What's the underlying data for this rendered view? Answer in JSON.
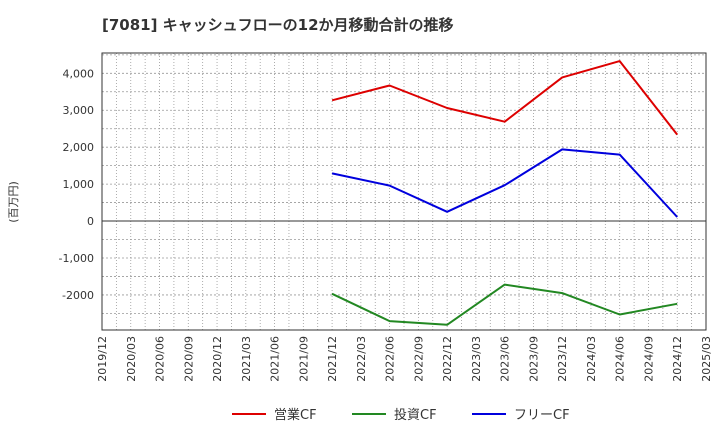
{
  "chart_data": {
    "type": "line",
    "title": "[7081]  キャッシュフローの12か月移動合計の推移",
    "ylabel": "(百万円)",
    "xlabel": "",
    "ylim": [
      -2950,
      4550
    ],
    "yticks": [
      4000,
      3000,
      2000,
      1000,
      0,
      -1000,
      -2000
    ],
    "ytick_labels": [
      "4,000",
      "3,000",
      "2,000",
      "1,000",
      "0",
      "-1,000",
      "-2000"
    ],
    "xticks": [
      "2019/12",
      "2020/03",
      "2020/06",
      "2020/09",
      "2020/12",
      "2021/03",
      "2021/06",
      "2021/09",
      "2021/12",
      "2022/03",
      "2022/06",
      "2022/09",
      "2022/12",
      "2023/03",
      "2023/06",
      "2023/09",
      "2023/12",
      "2024/03",
      "2024/06",
      "2024/09",
      "2024/12",
      "2025/03"
    ],
    "grid": true,
    "legend_position": "bottom",
    "series": [
      {
        "name": "営業CF",
        "color": "#dd0000",
        "x": [
          "2021/12",
          "2022/06",
          "2022/12",
          "2023/06",
          "2023/12",
          "2024/06",
          "2024/12"
        ],
        "values": [
          3270,
          3670,
          3060,
          2690,
          3890,
          4330,
          2340
        ]
      },
      {
        "name": "投資CF",
        "color": "#228822",
        "x": [
          "2021/12",
          "2022/06",
          "2022/12",
          "2023/06",
          "2023/12",
          "2024/06",
          "2024/12"
        ],
        "values": [
          -1970,
          -2710,
          -2810,
          -1720,
          -1950,
          -2530,
          -2240
        ]
      },
      {
        "name": "フリーCF",
        "color": "#0000dd",
        "x": [
          "2021/12",
          "2022/06",
          "2022/12",
          "2023/06",
          "2023/12",
          "2024/06",
          "2024/12"
        ],
        "values": [
          1290,
          960,
          250,
          970,
          1940,
          1800,
          110
        ]
      }
    ]
  }
}
